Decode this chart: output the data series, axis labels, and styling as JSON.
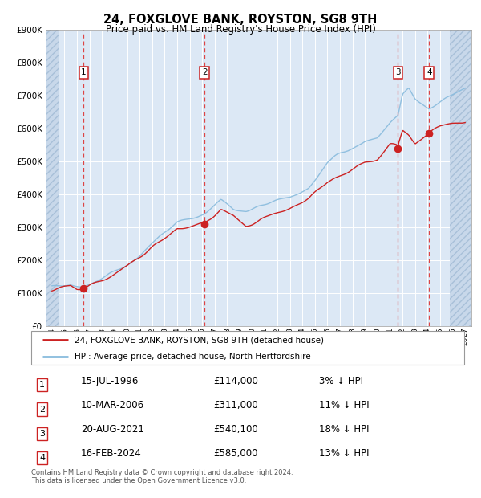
{
  "title": "24, FOXGLOVE BANK, ROYSTON, SG8 9TH",
  "subtitle": "Price paid vs. HM Land Registry's House Price Index (HPI)",
  "xmin": 1993.5,
  "xmax": 2027.5,
  "ymin": 0,
  "ymax": 900000,
  "yticks": [
    0,
    100000,
    200000,
    300000,
    400000,
    500000,
    600000,
    700000,
    800000,
    900000
  ],
  "ytick_labels": [
    "£0",
    "£100K",
    "£200K",
    "£300K",
    "£400K",
    "£500K",
    "£600K",
    "£700K",
    "£800K",
    "£900K"
  ],
  "hatch_left_end": 1994.5,
  "hatch_right_start": 2025.8,
  "transactions": [
    {
      "num": 1,
      "date": "15-JUL-1996",
      "price": 114000,
      "year": 1996.54,
      "pct": "3%",
      "dir": "↓"
    },
    {
      "num": 2,
      "date": "10-MAR-2006",
      "price": 311000,
      "year": 2006.19,
      "pct": "11%",
      "dir": "↓"
    },
    {
      "num": 3,
      "date": "20-AUG-2021",
      "price": 540100,
      "year": 2021.64,
      "pct": "18%",
      "dir": "↓"
    },
    {
      "num": 4,
      "date": "16-FEB-2024",
      "price": 585000,
      "year": 2024.13,
      "pct": "13%",
      "dir": "↓"
    }
  ],
  "legend_line1": "24, FOXGLOVE BANK, ROYSTON, SG8 9TH (detached house)",
  "legend_line2": "HPI: Average price, detached house, North Hertfordshire",
  "footnote": "Contains HM Land Registry data © Crown copyright and database right 2024.\nThis data is licensed under the Open Government Licence v3.0.",
  "red_color": "#cc2222",
  "blue_color": "#88bbdd",
  "bg_color": "#dce8f5",
  "grid_color": "#ffffff",
  "dashed_line_color": "#dd4444",
  "sale_prices": [
    114000,
    311000,
    540100,
    585000
  ],
  "sale_years": [
    1996.54,
    2006.19,
    2021.64,
    2024.13
  ]
}
